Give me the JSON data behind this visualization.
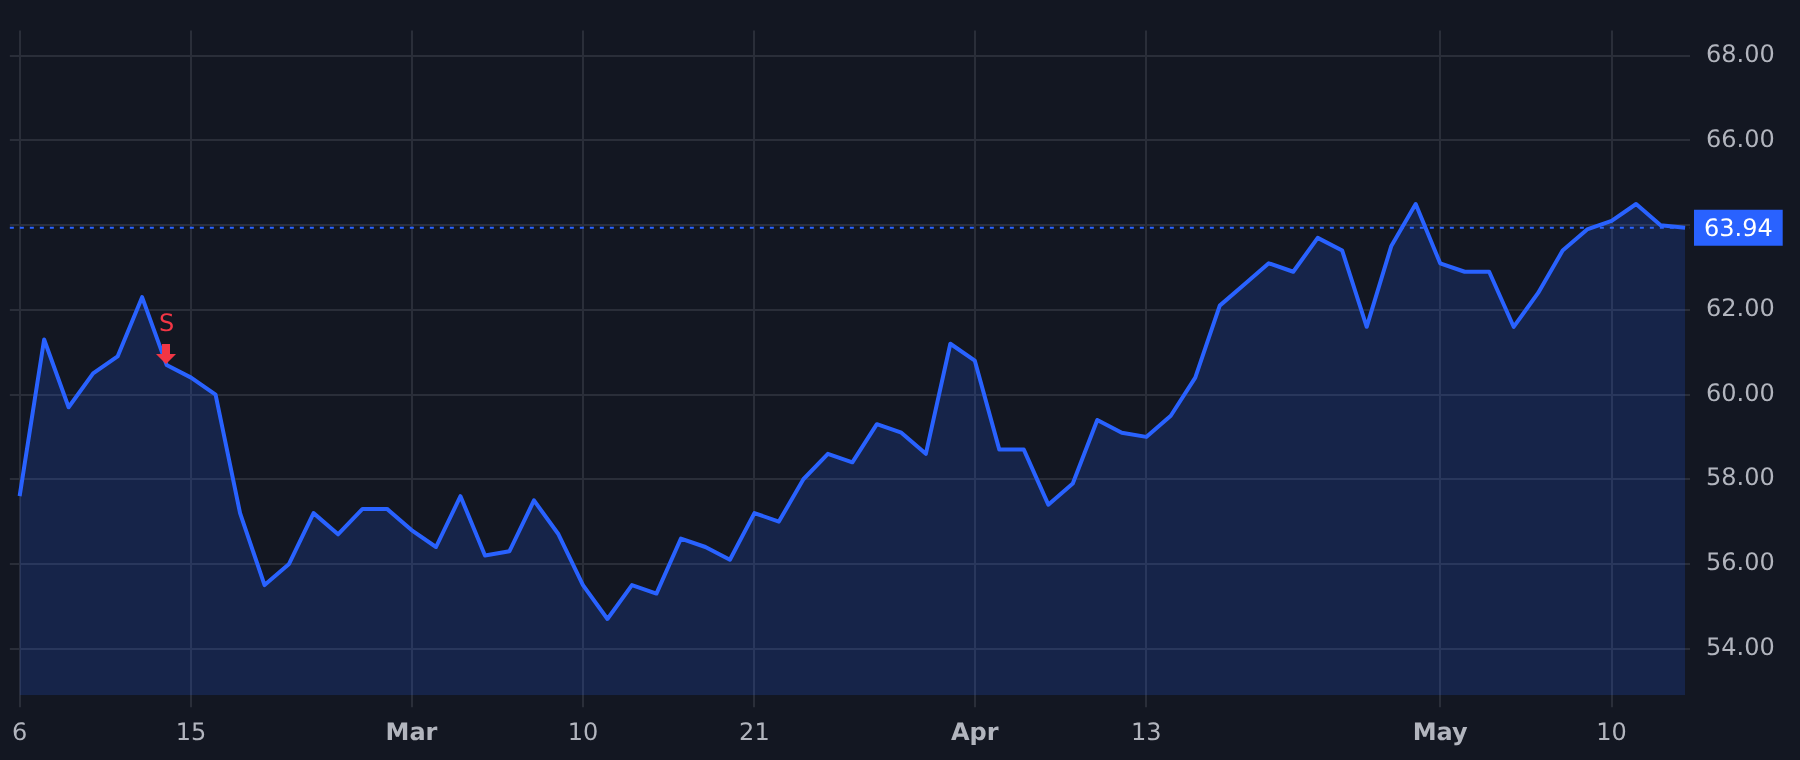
{
  "chart_data": {
    "type": "area",
    "categories": [
      "6",
      null,
      null,
      null,
      null,
      null,
      null,
      "15",
      null,
      null,
      null,
      null,
      null,
      null,
      null,
      null,
      "Mar",
      null,
      null,
      null,
      null,
      null,
      null,
      "10",
      null,
      null,
      null,
      null,
      null,
      null,
      "21",
      null,
      null,
      null,
      null,
      null,
      null,
      null,
      null,
      "Apr",
      null,
      null,
      null,
      null,
      null,
      null,
      "13",
      null,
      null,
      null,
      null,
      null,
      null,
      null,
      null,
      null,
      null,
      null,
      "May",
      null,
      null,
      null,
      null,
      null,
      null,
      "10",
      null,
      null,
      null
    ],
    "series": [
      {
        "color": "#2962ff",
        "values": [
          57.6,
          61.3,
          59.7,
          60.5,
          60.9,
          62.3,
          60.7,
          60.4,
          60.0,
          57.2,
          55.5,
          56.0,
          57.2,
          56.7,
          57.3,
          57.3,
          56.8,
          56.4,
          57.6,
          56.2,
          56.3,
          57.5,
          56.7,
          55.5,
          54.7,
          55.5,
          55.3,
          56.6,
          56.4,
          56.1,
          57.2,
          57.0,
          58.0,
          58.6,
          58.4,
          59.3,
          59.1,
          58.6,
          61.2,
          60.8,
          58.7,
          58.7,
          57.4,
          57.9,
          59.4,
          59.1,
          59.0,
          59.5,
          60.4,
          62.1,
          62.6,
          63.1,
          62.9,
          63.7,
          63.4,
          61.6,
          63.5,
          64.5,
          63.1,
          62.9,
          62.9,
          61.6,
          62.4,
          63.4,
          63.9,
          64.1,
          64.5,
          64.0,
          63.94
        ]
      }
    ],
    "ylim": [
      52.9,
      68.6
    ],
    "yticks": [
      {
        "value": 54,
        "label": "54.00"
      },
      {
        "value": 56,
        "label": "56.00"
      },
      {
        "value": 58,
        "label": "58.00"
      },
      {
        "value": 60,
        "label": "60.00"
      },
      {
        "value": 62,
        "label": "62.00"
      },
      {
        "value": 64,
        "label": null
      },
      {
        "value": 66,
        "label": "66.00"
      },
      {
        "value": 68,
        "label": "68.00"
      }
    ],
    "grid": true,
    "legend": false,
    "marker": "none",
    "line_style": "solid",
    "ref_lines": [
      {
        "axis": "y",
        "value": 63.94,
        "label": "63.94",
        "color": "#2962ff",
        "line_style": "dotted"
      }
    ],
    "annotations": [
      {
        "text": "S",
        "y": 60.7
      }
    ]
  }
}
